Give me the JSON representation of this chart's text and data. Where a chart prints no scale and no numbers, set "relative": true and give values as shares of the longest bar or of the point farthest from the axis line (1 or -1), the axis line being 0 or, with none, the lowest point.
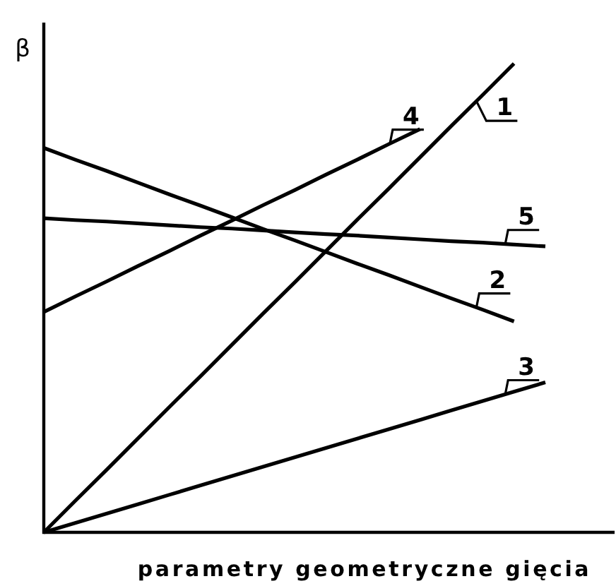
{
  "chart_data": {
    "type": "line",
    "relative": true,
    "ylabel": "β",
    "xlabel": "parametry geometryczne gięcia",
    "categories": [
      null,
      null,
      null,
      null,
      null,
      null,
      null,
      null,
      null,
      null,
      null,
      null,
      null,
      null,
      null,
      null,
      null
    ],
    "series": [
      {
        "name": "1",
        "color": "#000000",
        "values": [
          0,
          0.067,
          0.133,
          0.2,
          0.267,
          0.333,
          0.4,
          0.467,
          0.533,
          0.6,
          0.667,
          0.733,
          0.8,
          0.867,
          0.933,
          1,
          null
        ]
      },
      {
        "name": "2",
        "color": "#000000",
        "values": [
          0.82,
          0.795,
          0.771,
          0.746,
          0.721,
          0.697,
          0.672,
          0.647,
          0.623,
          0.598,
          0.573,
          0.549,
          0.524,
          0.499,
          0.475,
          0.45,
          null
        ]
      },
      {
        "name": "3",
        "color": "#000000",
        "values": [
          0,
          0.02,
          0.04,
          0.06,
          0.08,
          0.1,
          0.12,
          0.14,
          0.16,
          0.18,
          0.2,
          0.22,
          0.24,
          0.26,
          0.28,
          0.3,
          0.32
        ]
      },
      {
        "name": "4",
        "color": "#000000",
        "values": [
          0.47,
          0.503,
          0.535,
          0.568,
          0.6,
          0.633,
          0.665,
          0.698,
          0.73,
          0.763,
          0.795,
          0.828,
          0.86,
          null,
          null,
          null,
          null
        ]
      },
      {
        "name": "5",
        "color": "#000000",
        "values": [
          0.67,
          0.666,
          0.663,
          0.659,
          0.655,
          0.651,
          0.648,
          0.644,
          0.64,
          0.636,
          0.633,
          0.629,
          0.625,
          0.621,
          0.618,
          0.614,
          0.61
        ]
      }
    ]
  }
}
